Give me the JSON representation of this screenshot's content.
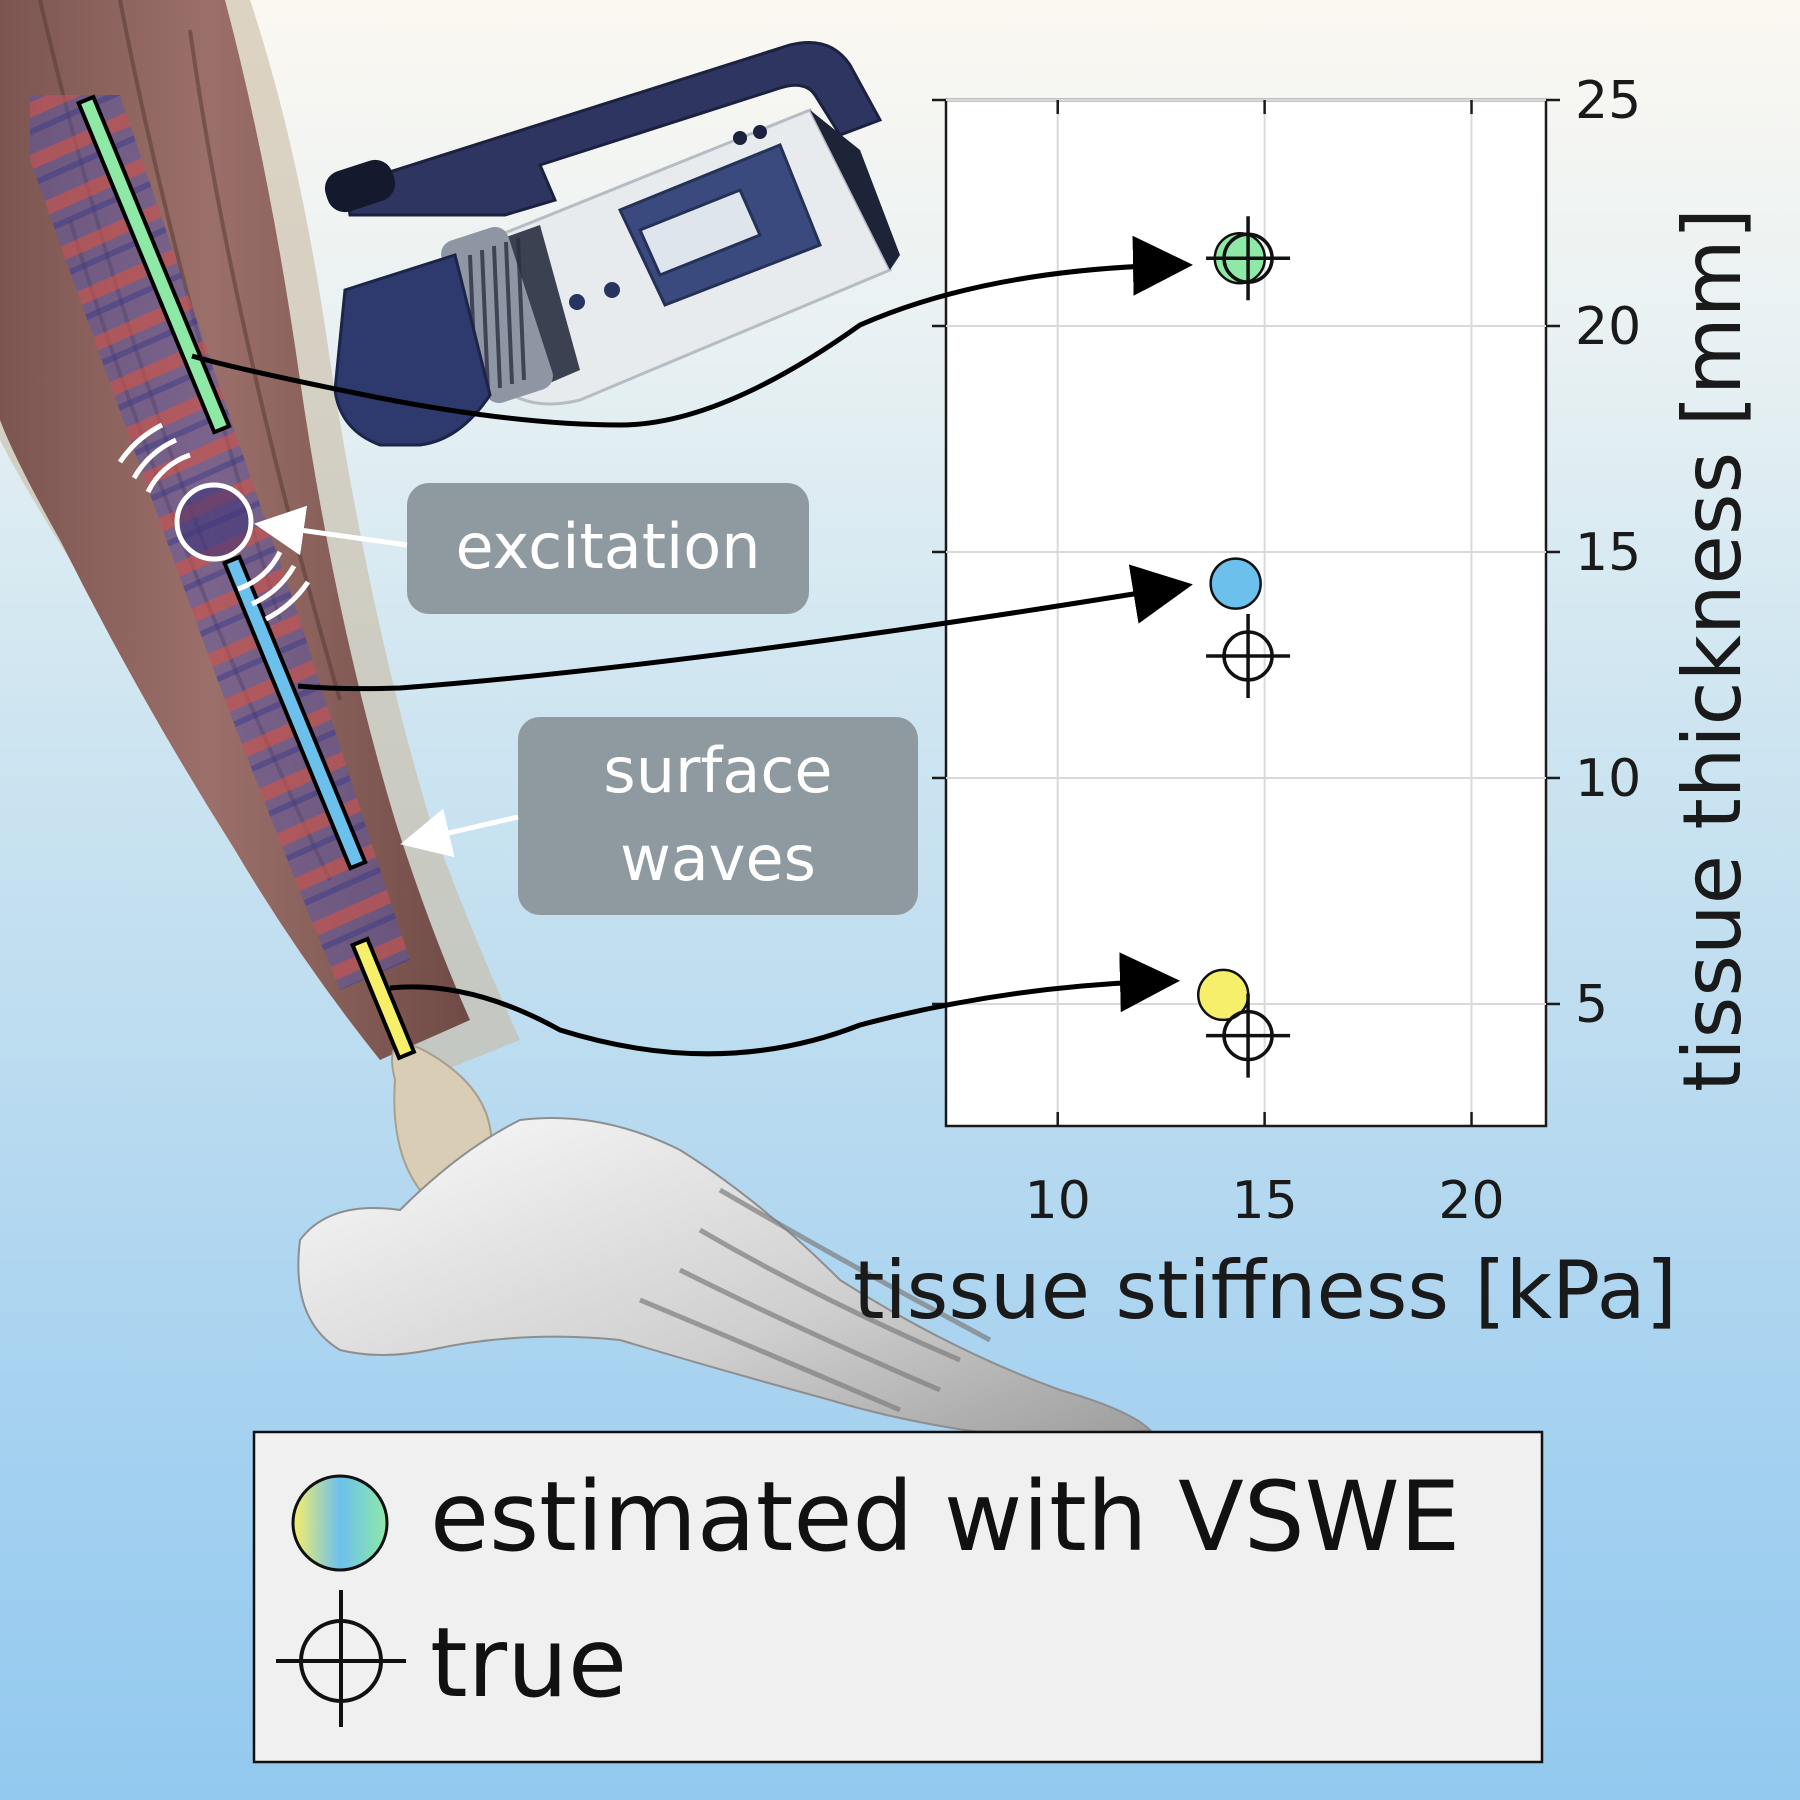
{
  "callouts": {
    "excitation": "excitation",
    "surface_waves_line1": "surface",
    "surface_waves_line2": "waves"
  },
  "legend": {
    "estimated_label": "estimated with VSWE",
    "true_label": "true"
  },
  "colors": {
    "upper_segment": "#8ee9a6",
    "middle_segment": "#6cc0ec",
    "lower_segment": "#f6ef6a",
    "callout_box": "#8f9aa0"
  },
  "icons": [
    "video-camera-icon",
    "excitation-wave-icon",
    "crosshair-icon"
  ],
  "chart_data": {
    "type": "scatter",
    "xlabel": "tissue stiffness [kPa]",
    "ylabel": "tissue thickness [mm]",
    "xlim": [
      7.3,
      21.8
    ],
    "ylim": [
      2.3,
      25
    ],
    "xticks": [
      10,
      15,
      20
    ],
    "yticks": [
      5,
      10,
      15,
      20,
      25
    ],
    "xtick_labels": [
      "10",
      "15",
      "20"
    ],
    "ytick_labels": [
      "5",
      "10",
      "15",
      "20",
      "25"
    ],
    "grid": true,
    "y_axis_side": "right",
    "series": [
      {
        "name": "estimated with VSWE",
        "points": [
          {
            "x": 14.4,
            "y": 21.5,
            "color": "#8ee9a6"
          },
          {
            "x": 14.3,
            "y": 14.3,
            "color": "#6cc0ec"
          },
          {
            "x": 14.0,
            "y": 5.2,
            "color": "#f6ef6a"
          }
        ]
      },
      {
        "name": "true",
        "points": [
          {
            "x": 14.6,
            "y": 21.5
          },
          {
            "x": 14.6,
            "y": 12.7
          },
          {
            "x": 14.6,
            "y": 4.3
          }
        ]
      }
    ]
  }
}
